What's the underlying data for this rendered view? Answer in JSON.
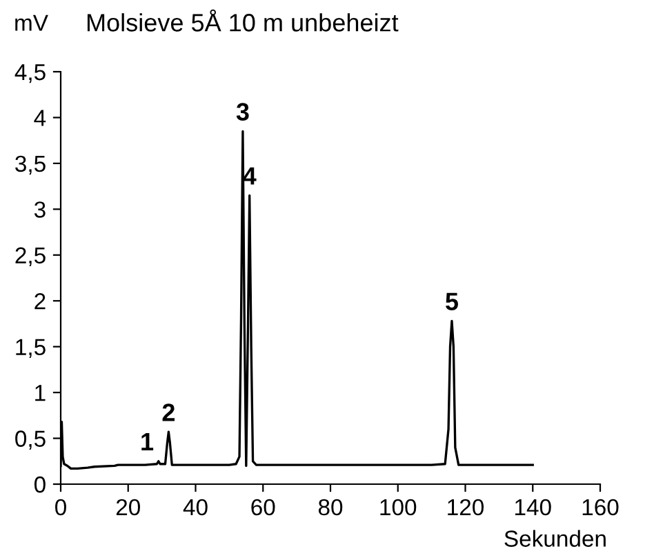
{
  "chart_data": {
    "type": "line",
    "title": "Molsieve 5Å 10 m unbeheizt",
    "ylabel": "mV",
    "xlabel": "Sekunden",
    "series": [
      {
        "color": "#000000",
        "x": [
          0,
          0.3,
          0.6,
          1,
          2,
          3,
          5,
          8,
          10,
          16,
          17,
          25,
          28.5,
          29,
          29.5,
          31,
          31.6,
          32,
          32.4,
          33,
          40,
          50,
          52,
          53,
          53.5,
          54,
          54.5,
          55,
          55.5,
          56,
          56.5,
          57,
          58,
          70,
          90,
          110,
          114,
          115,
          115.5,
          116,
          116.5,
          117,
          118,
          130,
          140
        ],
        "values": [
          0.2,
          0.68,
          0.3,
          0.22,
          0.2,
          0.17,
          0.17,
          0.18,
          0.19,
          0.2,
          0.21,
          0.21,
          0.22,
          0.25,
          0.22,
          0.22,
          0.45,
          0.57,
          0.45,
          0.21,
          0.21,
          0.21,
          0.22,
          0.3,
          1.8,
          3.85,
          1.7,
          0.2,
          1.6,
          3.15,
          1.5,
          0.25,
          0.21,
          0.21,
          0.21,
          0.21,
          0.22,
          0.6,
          1.5,
          1.78,
          1.5,
          0.4,
          0.21,
          0.21,
          0.21
        ]
      }
    ],
    "annotations": [
      {
        "text": "1",
        "x": 29,
        "y": 0.25
      },
      {
        "text": "2",
        "x": 32,
        "y": 0.57
      },
      {
        "text": "3",
        "x": 54,
        "y": 3.85
      },
      {
        "text": "4",
        "x": 56,
        "y": 3.15
      },
      {
        "text": "5",
        "x": 116,
        "y": 1.78
      }
    ],
    "xlim": [
      0,
      160
    ],
    "xticks": [
      0,
      20,
      40,
      60,
      80,
      100,
      120,
      140,
      160
    ],
    "ylim": [
      0,
      4.5
    ],
    "yticks": [
      0,
      {
        "value": 0.5,
        "label": "0,5"
      },
      1,
      {
        "value": 1.5,
        "label": "1,5"
      },
      2,
      {
        "value": 2.5,
        "label": "2,5"
      },
      3,
      {
        "value": 3.5,
        "label": "3,5"
      },
      4,
      {
        "value": 4.5,
        "label": "4,5"
      }
    ],
    "grid": false,
    "legend": false,
    "marker": "none",
    "line_style": "solid"
  }
}
